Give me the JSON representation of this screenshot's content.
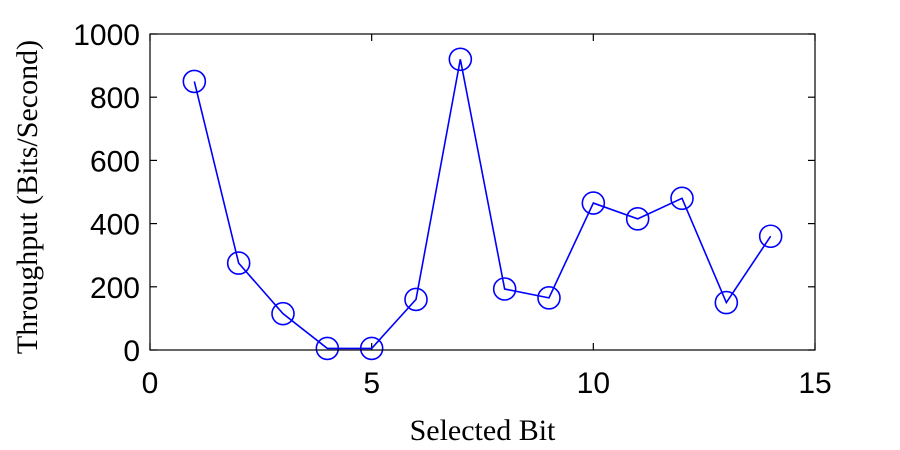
{
  "chart_data": {
    "type": "line",
    "xlabel": "Selected Bit",
    "ylabel": "Throughput (Bits/Second)",
    "xlim": [
      0,
      15
    ],
    "ylim": [
      0,
      1000
    ],
    "x_ticks": [
      0,
      5,
      10,
      15
    ],
    "y_ticks": [
      0,
      200,
      400,
      600,
      800,
      1000
    ],
    "x_tick_labels": [
      "0",
      "5",
      "10",
      "15"
    ],
    "y_tick_labels": [
      "0",
      "200",
      "400",
      "600",
      "800",
      "1000"
    ],
    "grid": false,
    "marker": "circle",
    "line_color": "#0000ff",
    "series": [
      {
        "x": [
          1,
          2,
          3,
          4,
          5,
          6,
          7,
          8,
          9,
          10,
          11,
          12,
          13,
          14
        ],
        "values": [
          850,
          275,
          115,
          5,
          5,
          160,
          920,
          193,
          165,
          465,
          415,
          480,
          150,
          360
        ]
      }
    ]
  }
}
